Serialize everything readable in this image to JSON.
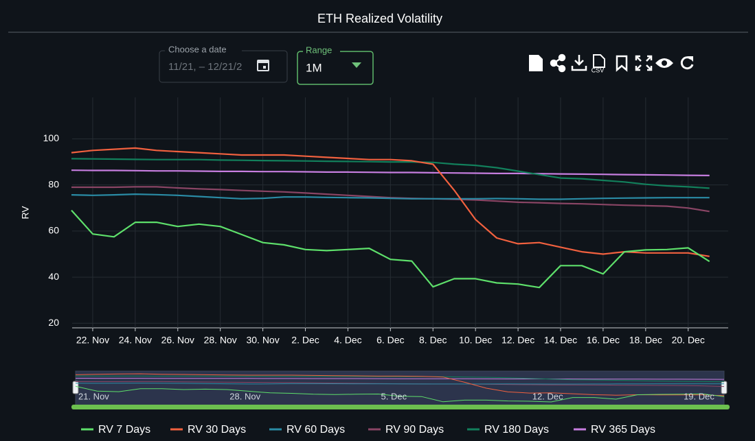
{
  "chart_data": {
    "type": "line",
    "title": "ETH Realized Volatility",
    "y_label": "RV",
    "categories": [
      "21. Nov",
      "22. Nov",
      null,
      "24. Nov",
      null,
      "26. Nov",
      null,
      "28. Nov",
      null,
      "30. Nov",
      null,
      "2. Dec",
      null,
      "4. Dec",
      "5. Dec",
      "6. Dec",
      null,
      "8. Dec",
      null,
      "10. Dec",
      null,
      "12. Dec",
      null,
      "14. Dec",
      null,
      "16. Dec",
      null,
      "18. Dec",
      "19. Dec",
      "20. Dec",
      null
    ],
    "axis_labels": [
      "22. Nov",
      "24. Nov",
      "26. Nov",
      "28. Nov",
      "30. Nov",
      "2. Dec",
      "4. Dec",
      "6. Dec",
      "8. Dec",
      "10. Dec",
      "12. Dec",
      "14. Dec",
      "16. Dec",
      "18. Dec",
      "20. Dec"
    ],
    "navigator_labels": [
      "21. Nov",
      "28. Nov",
      "5. Dec",
      "12. Dec",
      "19. Dec"
    ],
    "ylim": [
      18,
      118
    ],
    "yticks": [
      20,
      40,
      60,
      80,
      100
    ],
    "grid": true,
    "series": [
      {
        "name": "RV 7 Days",
        "color": "#5ee06b",
        "values": [
          69,
          58.7,
          57.5,
          63.8,
          63.8,
          62,
          63,
          62,
          58.5,
          55,
          54,
          52,
          51.5,
          52,
          52.5,
          47.7,
          47,
          35.8,
          39.3,
          39.3,
          37.5,
          37,
          35.5,
          45,
          45,
          41.4,
          51,
          51.8,
          52,
          52.7,
          46.8
        ]
      },
      {
        "name": "RV 30 Days",
        "color": "#f2613f",
        "values": [
          94,
          95,
          95.5,
          96,
          95,
          94.5,
          94,
          93.5,
          93,
          93,
          93,
          92.5,
          92,
          91.5,
          91,
          91,
          90.5,
          89,
          77.7,
          65,
          57,
          54.5,
          55,
          53,
          51,
          50,
          51,
          50.5,
          50.5,
          50.5,
          49
        ]
      },
      {
        "name": "RV 60 Days",
        "color": "#2a8ca6",
        "values": [
          75.7,
          75.5,
          75.7,
          76,
          75.8,
          75.5,
          75,
          74.5,
          74,
          74.2,
          74.8,
          74.8,
          74.6,
          74.5,
          74.4,
          74.2,
          74,
          74,
          74,
          74,
          74.1,
          74,
          73.8,
          73.8,
          74,
          74.2,
          74.3,
          74.4,
          74.5,
          74.5,
          74.5
        ]
      },
      {
        "name": "RV 90 Days",
        "color": "#8a4565",
        "values": [
          79,
          79,
          79,
          79.2,
          79.2,
          78.7,
          78.3,
          78,
          77.6,
          77.3,
          77,
          76.5,
          76,
          75.5,
          75,
          74.5,
          74.2,
          74,
          73.8,
          73.5,
          73,
          72.5,
          72.3,
          72,
          71.8,
          71.5,
          71.2,
          71,
          70.8,
          70,
          68.5
        ]
      },
      {
        "name": "RV 180 Days",
        "color": "#12805c",
        "values": [
          91.4,
          91.3,
          91.2,
          91.1,
          91,
          91,
          91,
          90.8,
          90.7,
          90.6,
          90.5,
          90.4,
          90.3,
          90.2,
          90.1,
          90,
          90,
          89.8,
          89,
          88.5,
          87.5,
          86,
          84.5,
          83,
          82.7,
          82,
          81.3,
          80.3,
          79.6,
          79.2,
          78.6
        ]
      },
      {
        "name": "RV 365 Days",
        "color": "#c77ee0",
        "values": [
          86.4,
          86.3,
          86.3,
          86.2,
          86.1,
          86.1,
          86,
          85.9,
          85.9,
          85.8,
          85.8,
          85.7,
          85.6,
          85.6,
          85.5,
          85.4,
          85.4,
          85.3,
          85.2,
          85.1,
          85,
          85,
          84.9,
          84.8,
          84.7,
          84.6,
          84.5,
          84.4,
          84.3,
          84.2,
          84.1
        ]
      }
    ]
  },
  "controls": {
    "date_label": "Choose a date",
    "date_value": "11/21, – 12/21/2",
    "range_label": "Range",
    "range_value": "1M",
    "csv_label": "CSV"
  }
}
